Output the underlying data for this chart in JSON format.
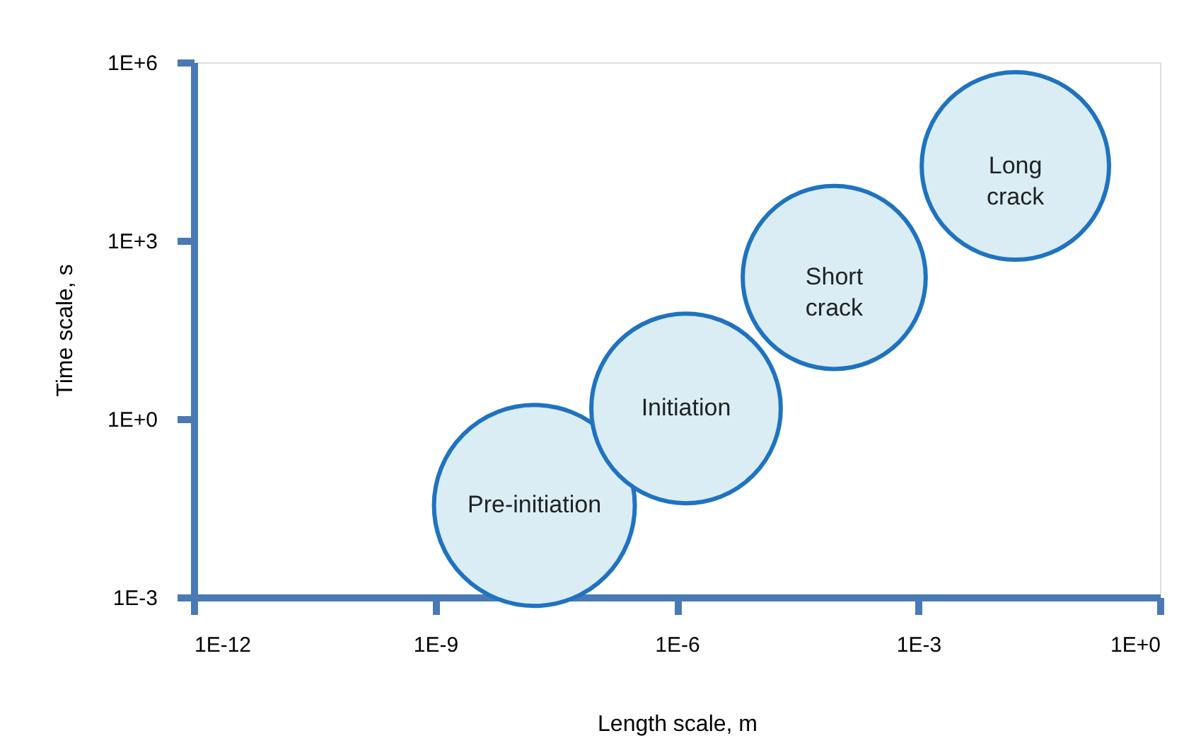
{
  "chart_data": {
    "type": "bubble",
    "xlabel": "Length scale, m",
    "ylabel": "Time scale, s",
    "x": [
      1.7e-08,
      1.3e-06,
      9e-05,
      0.016
    ],
    "values": [
      0.035,
      1.5,
      240,
      18000
    ],
    "sizes": [
      1,
      0.89,
      0.83,
      0.87
    ],
    "color": "#daedf4",
    "log": "xy",
    "xlim": [
      1e-12,
      1
    ],
    "ylim": [
      0.001,
      1000000
    ],
    "xticks": [
      {
        "value": 1e-12,
        "label": "1E-12"
      },
      {
        "value": 1e-09,
        "label": "1E-9"
      },
      {
        "value": 1e-06,
        "label": "1E-6"
      },
      {
        "value": 0.001,
        "label": "1E-3"
      },
      {
        "value": 1,
        "label": "1E+0"
      }
    ],
    "yticks": [
      {
        "value": 0.001,
        "label": "1E-3"
      },
      {
        "value": 1,
        "label": "1E+0"
      },
      {
        "value": 1000,
        "label": "1E+3"
      },
      {
        "value": 1000000,
        "label": "1E+6"
      }
    ],
    "annotations": [
      {
        "text": "Pre-initiation",
        "x": 1.7e-08,
        "y": 0.035
      },
      {
        "text": "Initiation",
        "x": 1.3e-06,
        "y": 1.5
      },
      {
        "text": "Short\ncrack",
        "x": 9e-05,
        "y": 240
      },
      {
        "text": "Long\ncrack",
        "x": 0.016,
        "y": 18000
      }
    ],
    "grid": false
  }
}
